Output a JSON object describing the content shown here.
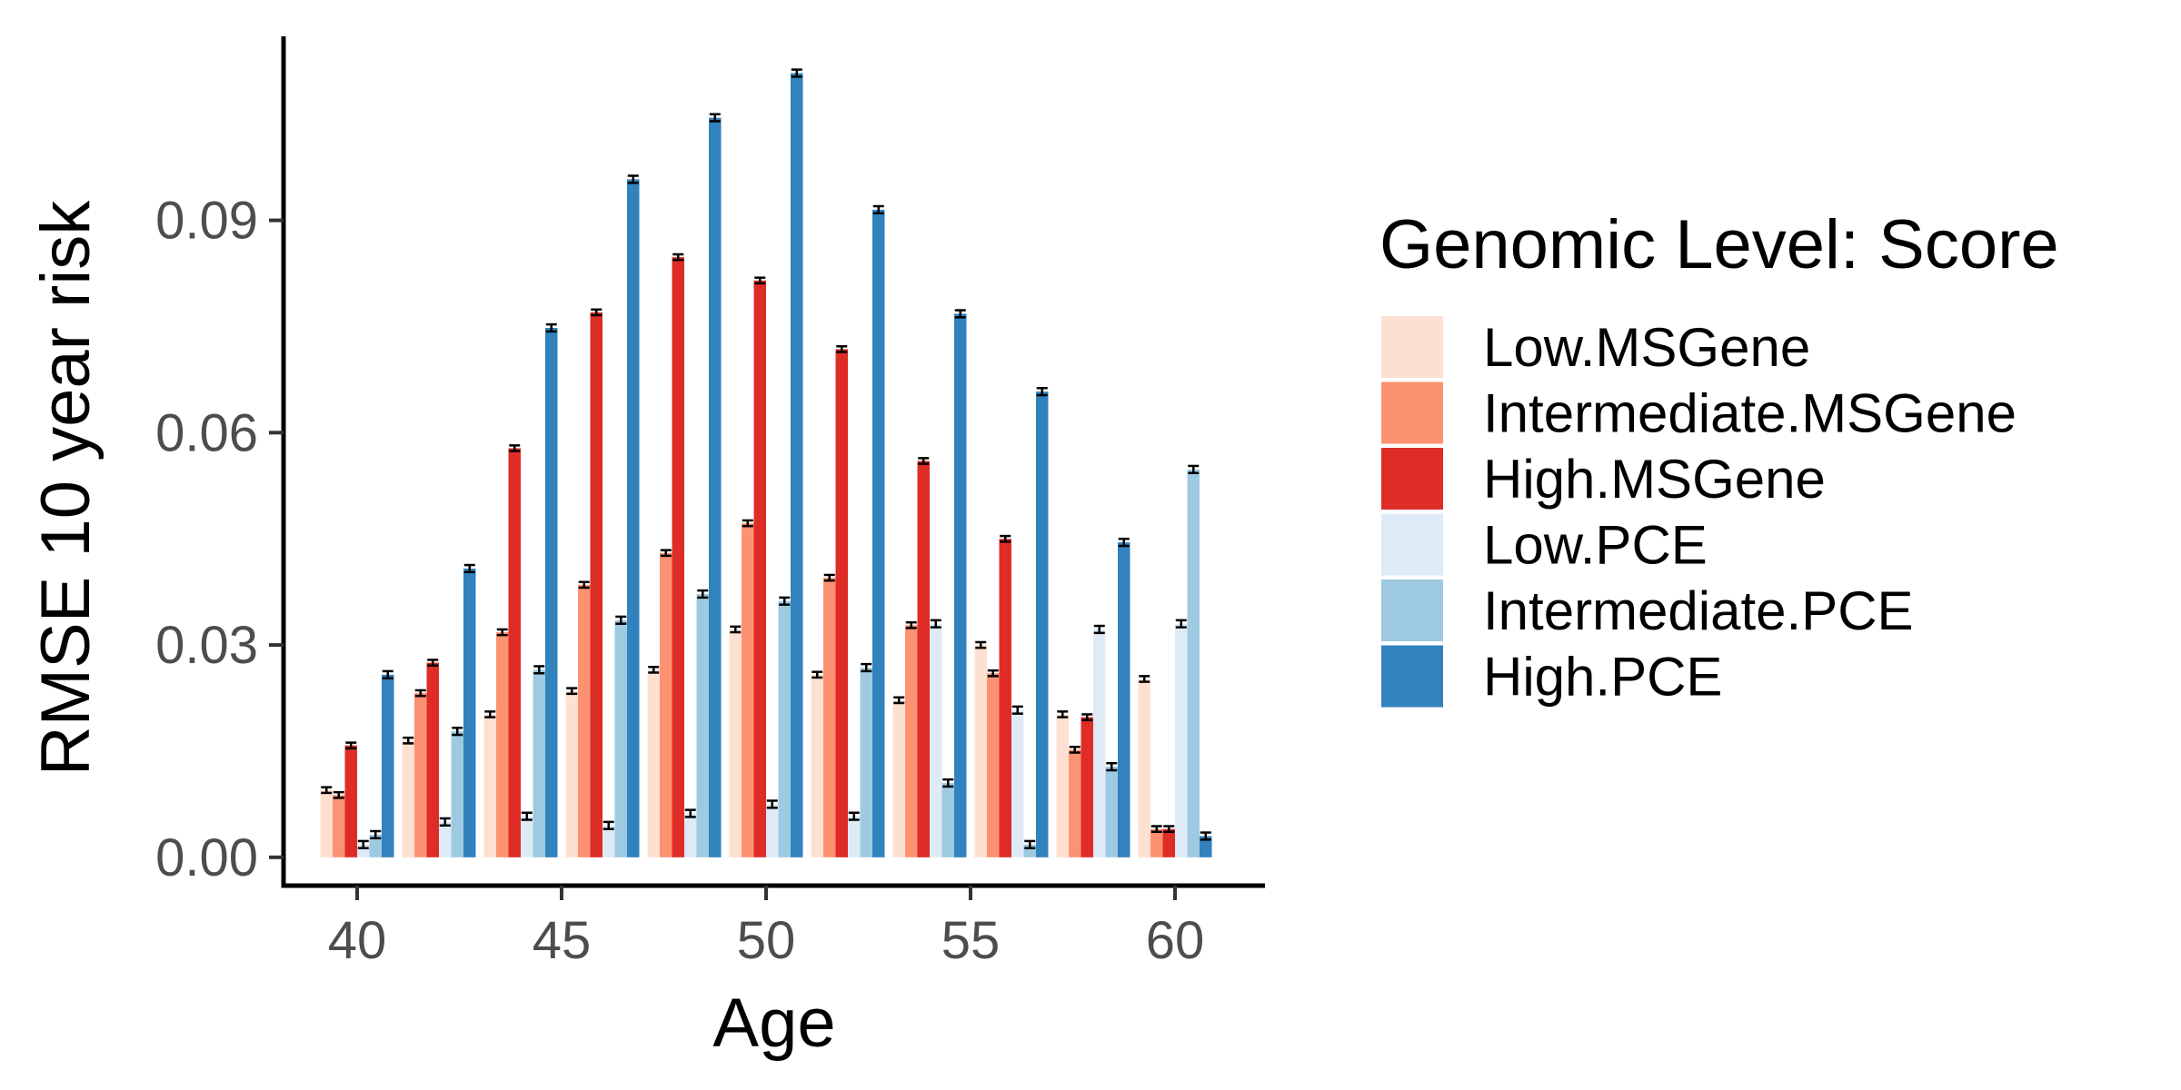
{
  "chart_data": {
    "type": "bar",
    "xlabel": "Age",
    "ylabel": "RMSE 10 year risk",
    "ylim": [
      -0.004,
      0.116
    ],
    "xlim": [
      38.2,
      62.2
    ],
    "xticks": [
      40,
      45,
      50,
      55,
      60
    ],
    "yticks": [
      0.0,
      0.03,
      0.06,
      0.09
    ],
    "ytick_labels": [
      "0.00",
      "0.03",
      "0.06",
      "0.09"
    ],
    "grid": false,
    "legend": {
      "title": "Genomic Level: Score",
      "placement": "right"
    },
    "x": [
      40,
      42,
      44,
      46,
      48,
      50,
      52,
      54,
      56,
      58,
      60
    ],
    "series": [
      {
        "name": "Low.MSGene",
        "color": "#fee0d2",
        "values": [
          0.0095,
          0.0165,
          0.0202,
          0.0235,
          0.0265,
          0.0322,
          0.0258,
          0.0222,
          0.03,
          0.0202,
          0.0252
        ],
        "errors": [
          0.0004,
          0.0004,
          0.0004,
          0.0004,
          0.0004,
          0.0004,
          0.0004,
          0.0004,
          0.0004,
          0.0004,
          0.0004
        ]
      },
      {
        "name": "Intermediate.MSGene",
        "color": "#fc9272",
        "values": [
          0.0088,
          0.0232,
          0.0318,
          0.0385,
          0.043,
          0.0472,
          0.0395,
          0.0328,
          0.026,
          0.0152,
          0.004
        ],
        "errors": [
          0.0004,
          0.0004,
          0.0004,
          0.0004,
          0.0004,
          0.0004,
          0.0004,
          0.0004,
          0.0004,
          0.0004,
          0.0004
        ]
      },
      {
        "name": "High.MSGene",
        "color": "#de2d26",
        "values": [
          0.0158,
          0.0275,
          0.0578,
          0.077,
          0.0848,
          0.0815,
          0.0718,
          0.056,
          0.045,
          0.0198,
          0.004
        ],
        "errors": [
          0.0004,
          0.0004,
          0.0004,
          0.0004,
          0.0004,
          0.0004,
          0.0004,
          0.0004,
          0.0004,
          0.0004,
          0.0004
        ]
      },
      {
        "name": "Low.PCE",
        "color": "#deebf7",
        "values": [
          0.0018,
          0.005,
          0.0058,
          0.0045,
          0.0062,
          0.0075,
          0.0058,
          0.033,
          0.0208,
          0.0322,
          0.033
        ],
        "errors": [
          0.0005,
          0.0005,
          0.0005,
          0.0005,
          0.0005,
          0.0005,
          0.0005,
          0.0005,
          0.0005,
          0.0005,
          0.0005
        ]
      },
      {
        "name": "Intermediate.PCE",
        "color": "#9ecae1",
        "values": [
          0.0032,
          0.0178,
          0.0265,
          0.0335,
          0.0372,
          0.0362,
          0.0268,
          0.0105,
          0.0018,
          0.0128,
          0.0548
        ],
        "errors": [
          0.0005,
          0.0005,
          0.0005,
          0.0005,
          0.0005,
          0.0005,
          0.0005,
          0.0005,
          0.0005,
          0.0005,
          0.0005
        ]
      },
      {
        "name": "High.PCE",
        "color": "#3182bd",
        "values": [
          0.0258,
          0.0408,
          0.0748,
          0.0958,
          0.1045,
          0.1108,
          0.0915,
          0.0768,
          0.0658,
          0.0445,
          0.003
        ],
        "errors": [
          0.0005,
          0.0005,
          0.0005,
          0.0005,
          0.0005,
          0.0005,
          0.0005,
          0.0005,
          0.0005,
          0.0005,
          0.0005
        ]
      }
    ]
  }
}
